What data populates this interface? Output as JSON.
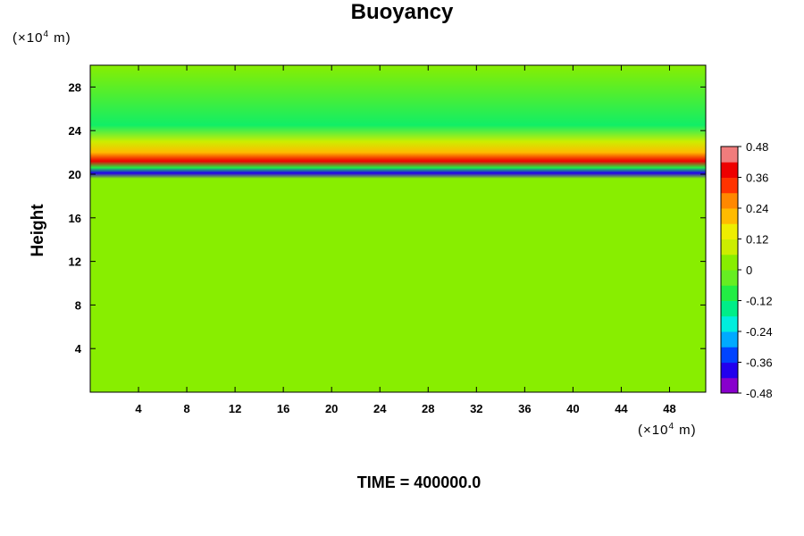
{
  "chart_data": {
    "type": "heatmap",
    "title": "Buoyancy",
    "ylabel": "Height",
    "y_unit": {
      "prefix": "(×10",
      "exp": "4",
      "suffix": " m)"
    },
    "x_unit": {
      "prefix": "(×10",
      "exp": "4",
      "suffix": " m)"
    },
    "xlim": [
      0,
      51
    ],
    "ylim": [
      0,
      30
    ],
    "x_ticks": [
      4,
      8,
      12,
      16,
      20,
      24,
      28,
      32,
      36,
      40,
      44,
      48
    ],
    "y_ticks": [
      4,
      8,
      12,
      16,
      20,
      24,
      28
    ],
    "colorbar": {
      "range": [
        -0.48,
        0.48
      ],
      "tick_values": [
        0.48,
        0.36,
        0.24,
        0.12,
        0,
        -0.12,
        -0.24,
        -0.36,
        -0.48
      ],
      "tick_labels": [
        "0.48",
        "0.36",
        "0.24",
        "0.12",
        "0",
        "-0.12",
        "-0.24",
        "-0.36",
        "-0.48"
      ],
      "colors": [
        "#ee88ee",
        "#8800cc",
        "#2200ee",
        "#0044ff",
        "#00aaff",
        "#00eedd",
        "#00ee88",
        "#22ee44",
        "#88ee00",
        "#ccee00",
        "#eeee00",
        "#ffbb00",
        "#ff8800",
        "#ff3300",
        "#ee0000",
        "#f07c7c"
      ]
    },
    "bands": [
      {
        "height": 20.1,
        "value": -0.4,
        "note_color": "#0000dd"
      },
      {
        "height": 20.6,
        "value": -0.12
      },
      {
        "height": 21.2,
        "value": 0.4
      },
      {
        "height": 22.0,
        "value": 0.2
      },
      {
        "height": 23.0,
        "value": 0.06
      }
    ],
    "background_value": 0.03
  },
  "time_text": "TIME = 400000.0"
}
